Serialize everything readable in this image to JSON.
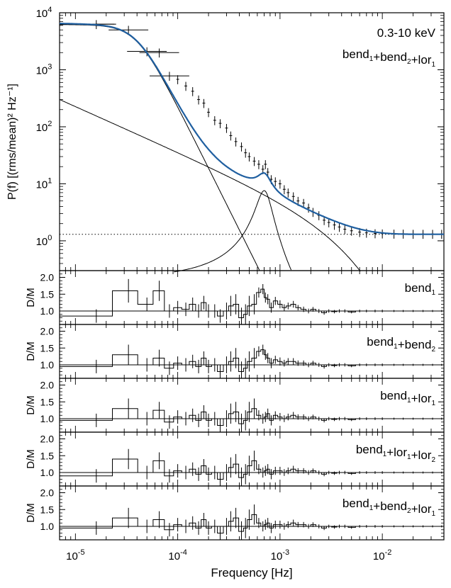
{
  "chart_data": [
    {
      "type": "line",
      "panel": "psd",
      "text_label": "0.3-10 keV",
      "model_label": {
        "base": "bend",
        "parts": [
          [
            "bend",
            "1"
          ],
          [
            "bend",
            "2"
          ],
          [
            "lor",
            "1"
          ]
        ]
      },
      "ylabel": "P(f) [(rms/mean)² Hz⁻¹]",
      "xlabel": "Frequency [Hz]",
      "xscale": "log",
      "yscale": "log",
      "xlim": [
        7e-06,
        0.04
      ],
      "ylim": [
        0.3,
        10000
      ],
      "x_ticks": [
        "10-5",
        "10-4",
        "10-3",
        "10-2"
      ],
      "y_ticks": [
        "100",
        "101",
        "102",
        "103",
        "104"
      ],
      "model_color": "#1f5fa0",
      "series": [
        {
          "role": "data-points",
          "x": [
            1.6e-05,
            3.3e-05,
            5e-05,
            6.6e-05,
            8.3e-05,
            0.0001,
            0.00012,
            0.00014,
            0.00016,
            0.00018,
            0.0002,
            0.00023,
            0.00026,
            0.0003,
            0.00033,
            0.00037,
            0.00042,
            0.00046,
            0.0005,
            0.00056,
            0.00062,
            0.00068,
            0.00072,
            0.00076,
            0.00082,
            0.0009,
            0.001,
            0.0011,
            0.0012,
            0.00135,
            0.0015,
            0.0017,
            0.0019,
            0.0021,
            0.0024,
            0.0027,
            0.003,
            0.0034,
            0.0038,
            0.0043,
            0.005,
            0.006,
            0.007,
            0.0085,
            0.01,
            0.013,
            0.016,
            0.02,
            0.025,
            0.031,
            0.038
          ],
          "y": [
            6300,
            5000,
            2100,
            2000,
            780,
            680,
            520,
            420,
            300,
            260,
            180,
            130,
            115,
            95,
            70,
            55,
            45,
            35,
            30,
            25,
            22,
            18,
            22,
            16,
            12,
            11,
            10,
            8,
            7,
            6,
            5,
            4.6,
            3.8,
            3.2,
            2.8,
            2.3,
            2.1,
            1.9,
            1.75,
            1.6,
            1.5,
            1.42,
            1.38,
            1.35,
            1.34,
            1.33,
            1.33,
            1.32,
            1.32,
            1.32,
            1.32
          ]
        },
        {
          "role": "model-total",
          "fn": "bend1+bend2+lor1+const"
        },
        {
          "role": "component",
          "name": "bend",
          "fn": "bend1"
        },
        {
          "role": "component",
          "name": "bend",
          "fn": "bend2"
        },
        {
          "role": "component",
          "name": "lor",
          "fn": "lor1"
        },
        {
          "role": "constant",
          "y": 1.3
        }
      ],
      "model_params": {
        "bend1": {
          "A": 6200,
          "fb": 4e-05,
          "a": 3.6
        },
        "bend2": {
          "A": 130,
          "slope": 0.8,
          "x0": 2e-05
        },
        "lor1": {
          "A": 7.6,
          "f0": 0.0007,
          "width": 0.00012
        },
        "const": 1.3
      }
    },
    {
      "type": "line",
      "panel": "residual",
      "ylabel": "D/M",
      "label": {
        "parts": [
          [
            "bend",
            "1"
          ]
        ]
      },
      "y_ticks": [
        "1.0",
        "1.5",
        "2.0"
      ],
      "ylim": [
        0.6,
        2.2
      ],
      "x": [
        1.6e-05,
        3.3e-05,
        5e-05,
        6.6e-05,
        8.3e-05,
        0.0001,
        0.00012,
        0.00014,
        0.00016,
        0.00018,
        0.0002,
        0.00023,
        0.00026,
        0.0003,
        0.00033,
        0.00037,
        0.00042,
        0.00046,
        0.0005,
        0.00056,
        0.00062,
        0.00068,
        0.00072,
        0.00076,
        0.00082,
        0.0009,
        0.001,
        0.0011,
        0.0012,
        0.00135,
        0.0015,
        0.0017,
        0.0019,
        0.0021,
        0.0024,
        0.0027,
        0.003,
        0.0034,
        0.0038,
        0.0043,
        0.005,
        0.006,
        0.007,
        0.0085,
        0.01,
        0.013,
        0.016,
        0.02,
        0.025,
        0.031,
        0.038
      ],
      "y": [
        0.85,
        1.6,
        1.2,
        1.6,
        1.0,
        1.1,
        1.05,
        1.2,
        1.0,
        1.25,
        1.0,
        1.0,
        0.85,
        1.0,
        1.15,
        1.2,
        0.8,
        0.9,
        1.15,
        1.2,
        1.55,
        1.65,
        1.4,
        1.35,
        1.1,
        1.3,
        1.2,
        1.1,
        1.15,
        1.2,
        1.1,
        1.05,
        1.0,
        1.05,
        1.0,
        0.95,
        1.0,
        0.98,
        1.0,
        1.0,
        0.97,
        1.0,
        1.0,
        1.0,
        1.0,
        1.0,
        1.0,
        1.0,
        1.0,
        1.0,
        1.0
      ],
      "err": [
        0.2,
        0.35,
        0.2,
        0.3,
        0.2,
        0.2,
        0.2,
        0.2,
        0.2,
        0.2,
        0.2,
        0.2,
        0.2,
        0.25,
        0.3,
        0.3,
        0.3,
        0.3,
        0.3,
        0.3,
        0.15,
        0.15,
        0.15,
        0.15,
        0.15,
        0.12,
        0.12,
        0.1,
        0.1,
        0.1,
        0.08,
        0.08,
        0.07,
        0.07,
        0.06,
        0.06,
        0.05,
        0.05,
        0.05,
        0.05,
        0.04,
        0.04,
        0.04,
        0.04,
        0.04,
        0.03,
        0.03,
        0.03,
        0.03,
        0.03,
        0.03
      ]
    },
    {
      "type": "line",
      "panel": "residual",
      "ylabel": "D/M",
      "label": {
        "parts": [
          [
            "bend",
            "1"
          ],
          [
            "bend",
            "2"
          ]
        ]
      },
      "y_ticks": [
        "1.0",
        "1.5",
        "2.0"
      ],
      "ylim": [
        0.6,
        2.2
      ],
      "x": [
        1.6e-05,
        3.3e-05,
        5e-05,
        6.6e-05,
        8.3e-05,
        0.0001,
        0.00012,
        0.00014,
        0.00016,
        0.00018,
        0.0002,
        0.00023,
        0.00026,
        0.0003,
        0.00033,
        0.00037,
        0.00042,
        0.00046,
        0.0005,
        0.00056,
        0.00062,
        0.00068,
        0.00072,
        0.00076,
        0.00082,
        0.0009,
        0.001,
        0.0011,
        0.0012,
        0.00135,
        0.0015,
        0.0017,
        0.0019,
        0.0021,
        0.0024,
        0.0027,
        0.003,
        0.0034,
        0.0038,
        0.0043,
        0.005,
        0.006,
        0.007,
        0.0085,
        0.01,
        0.013,
        0.016,
        0.02,
        0.025,
        0.031,
        0.038
      ],
      "y": [
        0.95,
        1.3,
        1.0,
        1.2,
        0.9,
        1.05,
        1.0,
        1.1,
        0.95,
        1.2,
        0.95,
        1.0,
        0.8,
        1.0,
        1.1,
        1.2,
        0.8,
        0.9,
        1.1,
        1.2,
        1.4,
        1.45,
        1.3,
        1.2,
        1.05,
        1.15,
        1.1,
        1.05,
        1.1,
        1.1,
        1.05,
        1.05,
        1.0,
        1.05,
        1.0,
        0.95,
        1.0,
        0.98,
        1.0,
        1.0,
        0.97,
        1.0,
        1.0,
        1.0,
        1.0,
        1.0,
        1.0,
        1.0,
        1.0,
        1.0,
        1.0
      ],
      "err": [
        0.2,
        0.3,
        0.2,
        0.25,
        0.2,
        0.2,
        0.2,
        0.2,
        0.2,
        0.2,
        0.2,
        0.2,
        0.2,
        0.25,
        0.3,
        0.3,
        0.3,
        0.3,
        0.3,
        0.3,
        0.15,
        0.15,
        0.15,
        0.15,
        0.15,
        0.12,
        0.12,
        0.1,
        0.1,
        0.1,
        0.08,
        0.08,
        0.07,
        0.07,
        0.06,
        0.06,
        0.05,
        0.05,
        0.05,
        0.05,
        0.04,
        0.04,
        0.04,
        0.04,
        0.04,
        0.03,
        0.03,
        0.03,
        0.03,
        0.03,
        0.03
      ]
    },
    {
      "type": "line",
      "panel": "residual",
      "ylabel": "D/M",
      "label": {
        "parts": [
          [
            "bend",
            "1"
          ],
          [
            "lor",
            "1"
          ]
        ]
      },
      "y_ticks": [
        "1.0",
        "1.5",
        "2.0"
      ],
      "ylim": [
        0.6,
        2.2
      ],
      "x": [
        1.6e-05,
        3.3e-05,
        5e-05,
        6.6e-05,
        8.3e-05,
        0.0001,
        0.00012,
        0.00014,
        0.00016,
        0.00018,
        0.0002,
        0.00023,
        0.00026,
        0.0003,
        0.00033,
        0.00037,
        0.00042,
        0.00046,
        0.0005,
        0.00056,
        0.00062,
        0.00068,
        0.00072,
        0.00076,
        0.00082,
        0.0009,
        0.001,
        0.0011,
        0.0012,
        0.00135,
        0.0015,
        0.0017,
        0.0019,
        0.0021,
        0.0024,
        0.0027,
        0.003,
        0.0034,
        0.0038,
        0.0043,
        0.005,
        0.006,
        0.007,
        0.0085,
        0.01,
        0.013,
        0.016,
        0.02,
        0.025,
        0.031,
        0.038
      ],
      "y": [
        0.95,
        1.3,
        1.0,
        1.25,
        0.9,
        1.05,
        1.0,
        1.1,
        0.95,
        1.2,
        0.95,
        1.0,
        0.8,
        1.0,
        1.15,
        1.2,
        0.85,
        0.95,
        1.2,
        1.3,
        1.1,
        1.0,
        1.05,
        1.15,
        0.95,
        1.1,
        1.05,
        1.0,
        1.05,
        1.1,
        1.05,
        1.05,
        1.0,
        1.05,
        1.0,
        0.95,
        1.0,
        0.98,
        1.0,
        1.0,
        0.97,
        1.0,
        1.0,
        1.0,
        1.0,
        1.0,
        1.0,
        1.0,
        1.0,
        1.0,
        1.0
      ],
      "err": [
        0.2,
        0.3,
        0.2,
        0.25,
        0.2,
        0.2,
        0.2,
        0.2,
        0.2,
        0.2,
        0.2,
        0.2,
        0.2,
        0.25,
        0.3,
        0.3,
        0.3,
        0.3,
        0.3,
        0.3,
        0.15,
        0.15,
        0.15,
        0.15,
        0.15,
        0.12,
        0.12,
        0.1,
        0.1,
        0.1,
        0.08,
        0.08,
        0.07,
        0.07,
        0.06,
        0.06,
        0.05,
        0.05,
        0.05,
        0.05,
        0.04,
        0.04,
        0.04,
        0.04,
        0.04,
        0.03,
        0.03,
        0.03,
        0.03,
        0.03,
        0.03
      ]
    },
    {
      "type": "line",
      "panel": "residual",
      "ylabel": "D/M",
      "label": {
        "parts": [
          [
            "bend",
            "1"
          ],
          [
            "lor",
            "1"
          ],
          [
            "lor",
            "2"
          ]
        ]
      },
      "y_ticks": [
        "1.0",
        "1.5",
        "2.0"
      ],
      "ylim": [
        0.6,
        2.2
      ],
      "x": [
        1.6e-05,
        3.3e-05,
        5e-05,
        6.6e-05,
        8.3e-05,
        0.0001,
        0.00012,
        0.00014,
        0.00016,
        0.00018,
        0.0002,
        0.00023,
        0.00026,
        0.0003,
        0.00033,
        0.00037,
        0.00042,
        0.00046,
        0.0005,
        0.00056,
        0.00062,
        0.00068,
        0.00072,
        0.00076,
        0.00082,
        0.0009,
        0.001,
        0.0011,
        0.0012,
        0.00135,
        0.0015,
        0.0017,
        0.0019,
        0.0021,
        0.0024,
        0.0027,
        0.003,
        0.0034,
        0.0038,
        0.0043,
        0.005,
        0.006,
        0.007,
        0.0085,
        0.01,
        0.013,
        0.016,
        0.02,
        0.025,
        0.031,
        0.038
      ],
      "y": [
        0.9,
        1.4,
        1.0,
        1.35,
        0.9,
        1.05,
        1.0,
        1.1,
        0.95,
        1.2,
        0.95,
        1.0,
        0.8,
        1.0,
        1.15,
        1.25,
        0.85,
        0.95,
        1.2,
        1.35,
        1.1,
        1.0,
        1.05,
        1.1,
        0.95,
        1.05,
        1.05,
        1.0,
        1.05,
        1.1,
        1.05,
        1.05,
        1.0,
        1.05,
        1.0,
        0.95,
        1.0,
        0.98,
        1.0,
        1.0,
        0.97,
        1.0,
        1.0,
        1.0,
        1.0,
        1.0,
        1.0,
        1.0,
        1.0,
        1.0,
        1.0
      ],
      "err": [
        0.2,
        0.3,
        0.2,
        0.25,
        0.2,
        0.2,
        0.2,
        0.2,
        0.2,
        0.2,
        0.2,
        0.2,
        0.2,
        0.25,
        0.3,
        0.3,
        0.3,
        0.3,
        0.3,
        0.3,
        0.15,
        0.15,
        0.15,
        0.15,
        0.15,
        0.12,
        0.12,
        0.1,
        0.1,
        0.1,
        0.08,
        0.08,
        0.07,
        0.07,
        0.06,
        0.06,
        0.05,
        0.05,
        0.05,
        0.05,
        0.04,
        0.04,
        0.04,
        0.04,
        0.04,
        0.03,
        0.03,
        0.03,
        0.03,
        0.03,
        0.03
      ]
    },
    {
      "type": "line",
      "panel": "residual",
      "ylabel": "D/M",
      "label": {
        "parts": [
          [
            "bend",
            "1"
          ],
          [
            "bend",
            "2"
          ],
          [
            "lor",
            "1"
          ]
        ]
      },
      "y_ticks": [
        "1.0",
        "1.5",
        "2.0"
      ],
      "ylim": [
        0.6,
        2.2
      ],
      "x": [
        1.6e-05,
        3.3e-05,
        5e-05,
        6.6e-05,
        8.3e-05,
        0.0001,
        0.00012,
        0.00014,
        0.00016,
        0.00018,
        0.0002,
        0.00023,
        0.00026,
        0.0003,
        0.00033,
        0.00037,
        0.00042,
        0.00046,
        0.0005,
        0.00056,
        0.00062,
        0.00068,
        0.00072,
        0.00076,
        0.00082,
        0.0009,
        0.001,
        0.0011,
        0.0012,
        0.00135,
        0.0015,
        0.0017,
        0.0019,
        0.0021,
        0.0024,
        0.0027,
        0.003,
        0.0034,
        0.0038,
        0.0043,
        0.005,
        0.006,
        0.007,
        0.0085,
        0.01,
        0.013,
        0.016,
        0.02,
        0.025,
        0.031,
        0.038
      ],
      "y": [
        0.95,
        1.25,
        1.0,
        1.2,
        0.9,
        1.05,
        1.0,
        1.1,
        0.95,
        1.2,
        0.95,
        1.0,
        0.8,
        1.0,
        1.15,
        1.25,
        0.85,
        0.95,
        1.2,
        1.35,
        1.1,
        1.0,
        1.05,
        1.1,
        0.95,
        1.05,
        1.05,
        1.0,
        1.05,
        1.1,
        1.05,
        1.05,
        1.0,
        1.05,
        1.0,
        0.95,
        1.0,
        0.98,
        1.0,
        1.0,
        0.97,
        1.0,
        1.0,
        1.0,
        1.0,
        1.0,
        1.0,
        1.0,
        1.0,
        1.0,
        1.0
      ],
      "err": [
        0.2,
        0.3,
        0.2,
        0.25,
        0.2,
        0.2,
        0.2,
        0.2,
        0.2,
        0.2,
        0.2,
        0.2,
        0.2,
        0.25,
        0.3,
        0.3,
        0.3,
        0.3,
        0.3,
        0.3,
        0.15,
        0.15,
        0.15,
        0.15,
        0.15,
        0.12,
        0.12,
        0.1,
        0.1,
        0.1,
        0.08,
        0.08,
        0.07,
        0.07,
        0.06,
        0.06,
        0.05,
        0.05,
        0.05,
        0.05,
        0.04,
        0.04,
        0.04,
        0.04,
        0.04,
        0.03,
        0.03,
        0.03,
        0.03,
        0.03,
        0.03
      ]
    }
  ]
}
